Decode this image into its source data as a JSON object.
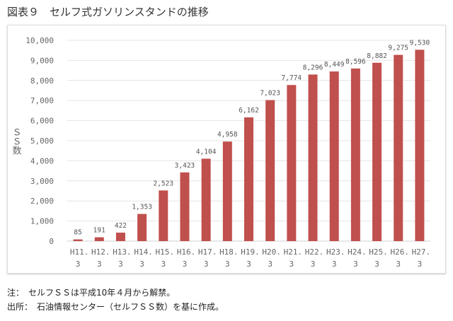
{
  "title": "図表９　セルフ式ガソリンスタンドの推移",
  "chart_data": {
    "type": "bar",
    "title": "",
    "xlabel": "",
    "ylabel": "ＳＳ数",
    "ylim": [
      0,
      10000
    ],
    "yticks": [
      "0",
      "1,000",
      "2,000",
      "3,000",
      "4,000",
      "5,000",
      "6,000",
      "7,000",
      "8,000",
      "9,000",
      "10,000"
    ],
    "grid": true,
    "bar_color": "#c0504d",
    "categories": [
      [
        "H11.",
        "3"
      ],
      [
        "H12.",
        "3"
      ],
      [
        "H13.",
        "3"
      ],
      [
        "H14.",
        "3"
      ],
      [
        "H15.",
        "3"
      ],
      [
        "H16.",
        "3"
      ],
      [
        "H17.",
        "3"
      ],
      [
        "H18.",
        "3"
      ],
      [
        "H19.",
        "3"
      ],
      [
        "H20.",
        "3"
      ],
      [
        "H21.",
        "3"
      ],
      [
        "H22.",
        "3"
      ],
      [
        "H23.",
        "3"
      ],
      [
        "H24.",
        "3"
      ],
      [
        "H25.",
        "3"
      ],
      [
        "H26.",
        "3"
      ],
      [
        "H27.",
        "3"
      ]
    ],
    "values": [
      85,
      191,
      422,
      1353,
      2523,
      3423,
      4104,
      4958,
      6162,
      7023,
      7774,
      8296,
      8449,
      8596,
      8882,
      9275,
      9530
    ],
    "data_labels": [
      "85",
      "191",
      "422",
      "1,353",
      "2,523",
      "3,423",
      "4,104",
      "4,958",
      "6,162",
      "7,023",
      "7,774",
      "8,296",
      "8,449",
      "8,596",
      "8,882",
      "9,275",
      "9,530"
    ]
  },
  "notes": {
    "note": "注：　セルフＳＳは平成10年４月から解禁。",
    "source": "出所：　石油情報センター（セルフＳＳ数）を基に作成。"
  }
}
